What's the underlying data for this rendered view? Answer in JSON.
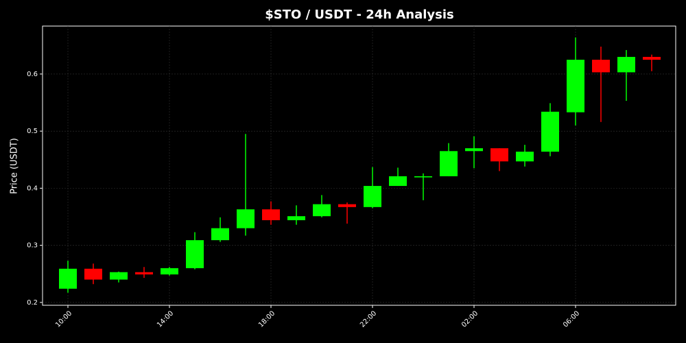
{
  "chart_data": {
    "type": "candlestick",
    "title": "$STO / USDT - 24h Analysis",
    "y_label": "Price (USDT)",
    "categories": [
      "10:00",
      null,
      null,
      null,
      "14:00",
      null,
      null,
      null,
      "18:00",
      null,
      null,
      null,
      "22:00",
      null,
      null,
      null,
      "02:00",
      null,
      null,
      null,
      "06:00",
      null,
      null,
      null
    ],
    "open": [
      0.224,
      0.259,
      0.24,
      0.253,
      0.249,
      0.26,
      0.309,
      0.33,
      0.363,
      0.344,
      0.351,
      0.372,
      0.367,
      0.404,
      0.419,
      0.421,
      0.465,
      0.47,
      0.447,
      0.464,
      0.533,
      0.625,
      0.603,
      0.63
    ],
    "high": [
      0.273,
      0.268,
      0.254,
      0.262,
      0.262,
      0.323,
      0.349,
      0.495,
      0.377,
      0.37,
      0.388,
      0.375,
      0.437,
      0.436,
      0.426,
      0.479,
      0.491,
      0.47,
      0.476,
      0.549,
      0.664,
      0.648,
      0.642,
      0.634
    ],
    "low": [
      0.217,
      0.232,
      0.235,
      0.243,
      0.247,
      0.258,
      0.306,
      0.317,
      0.336,
      0.336,
      0.349,
      0.338,
      0.365,
      0.404,
      0.379,
      0.421,
      0.435,
      0.43,
      0.438,
      0.456,
      0.51,
      0.516,
      0.553,
      0.605
    ],
    "close": [
      0.259,
      0.24,
      0.253,
      0.249,
      0.26,
      0.309,
      0.33,
      0.363,
      0.344,
      0.351,
      0.372,
      0.367,
      0.404,
      0.421,
      0.421,
      0.465,
      0.47,
      0.447,
      0.464,
      0.534,
      0.625,
      0.603,
      0.63,
      0.625
    ],
    "up_color": "#00ff00",
    "down_color": "#ff0000",
    "ylim": [
      0.195,
      0.684
    ],
    "yticks": [
      0.2,
      0.3,
      0.4,
      0.5,
      0.6
    ],
    "grid": true
  }
}
